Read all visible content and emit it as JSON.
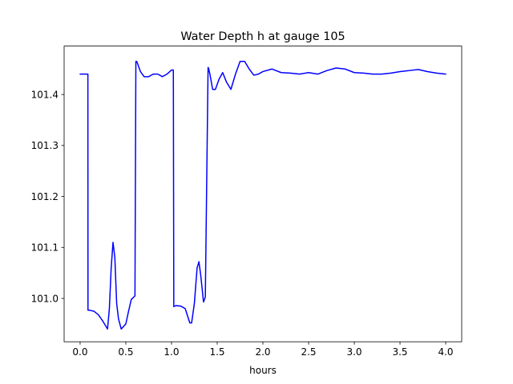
{
  "chart_data": {
    "type": "line",
    "title": "Water Depth h at gauge 105",
    "xlabel": "hours",
    "ylabel": "",
    "xlim": [
      -0.175,
      4.175
    ],
    "ylim": [
      100.915,
      101.495
    ],
    "xticks": [
      0.0,
      0.5,
      1.0,
      1.5,
      2.0,
      2.5,
      3.0,
      3.5,
      4.0
    ],
    "xtick_labels": [
      "0.0",
      "0.5",
      "1.0",
      "1.5",
      "2.0",
      "2.5",
      "3.0",
      "3.5",
      "4.0"
    ],
    "yticks": [
      101.0,
      101.1,
      101.2,
      101.3,
      101.4
    ],
    "ytick_labels": [
      "101.0",
      "101.1",
      "101.2",
      "101.3",
      "101.4"
    ],
    "grid": false,
    "series": [
      {
        "color": "#0000ff",
        "x": [
          0.0,
          0.05,
          0.085,
          0.086,
          0.1,
          0.15,
          0.2,
          0.25,
          0.3,
          0.32,
          0.34,
          0.36,
          0.38,
          0.4,
          0.42,
          0.45,
          0.5,
          0.53,
          0.56,
          0.6,
          0.61,
          0.62,
          0.64,
          0.66,
          0.7,
          0.75,
          0.8,
          0.85,
          0.9,
          0.95,
          1.0,
          1.02,
          1.025,
          1.05,
          1.1,
          1.15,
          1.2,
          1.22,
          1.25,
          1.28,
          1.3,
          1.32,
          1.35,
          1.37,
          1.4,
          1.405,
          1.42,
          1.45,
          1.48,
          1.52,
          1.56,
          1.6,
          1.65,
          1.7,
          1.75,
          1.8,
          1.85,
          1.9,
          1.95,
          2.0,
          2.1,
          2.2,
          2.3,
          2.4,
          2.5,
          2.6,
          2.7,
          2.8,
          2.9,
          3.0,
          3.1,
          3.2,
          3.3,
          3.4,
          3.5,
          3.6,
          3.7,
          3.8,
          3.9,
          4.0
        ],
        "y": [
          101.44,
          101.44,
          101.44,
          100.977,
          100.977,
          100.975,
          100.968,
          100.955,
          100.94,
          100.98,
          101.06,
          101.11,
          101.08,
          100.99,
          100.96,
          100.94,
          100.95,
          100.975,
          100.998,
          101.005,
          101.465,
          101.465,
          101.455,
          101.445,
          101.435,
          101.435,
          101.44,
          101.44,
          101.435,
          101.44,
          101.448,
          101.448,
          100.984,
          100.986,
          100.985,
          100.98,
          100.952,
          100.952,
          100.99,
          101.06,
          101.072,
          101.045,
          100.993,
          101.003,
          101.453,
          101.452,
          101.44,
          101.41,
          101.41,
          101.43,
          101.443,
          101.425,
          101.41,
          101.44,
          101.465,
          101.465,
          101.45,
          101.438,
          101.44,
          101.445,
          101.45,
          101.443,
          101.442,
          101.44,
          101.443,
          101.44,
          101.447,
          101.452,
          101.45,
          101.443,
          101.442,
          101.44,
          101.44,
          101.442,
          101.445,
          101.447,
          101.449,
          101.445,
          101.442,
          101.44
        ]
      }
    ]
  }
}
